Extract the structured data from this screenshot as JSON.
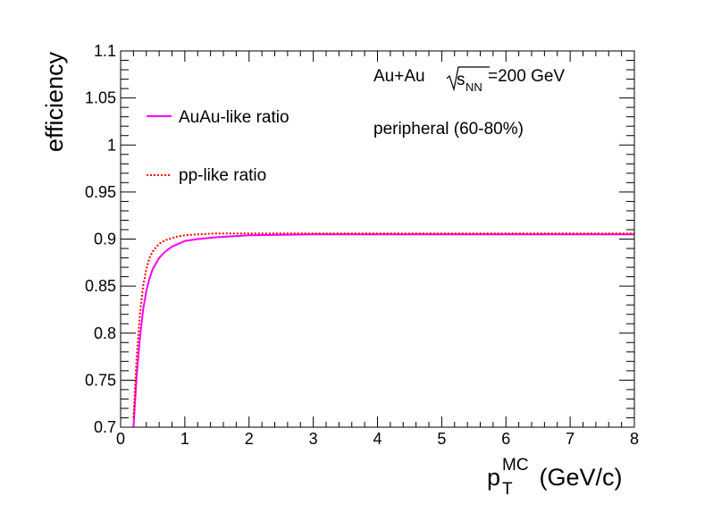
{
  "chart_data": {
    "type": "line",
    "xlabel": {
      "main": "p",
      "sub": "T",
      "sup": "MC",
      "unit": " (GeV/c)"
    },
    "ylabel": "efficiency",
    "xlim": [
      0,
      8
    ],
    "ylim": [
      0.7,
      1.1
    ],
    "x_ticks": [
      0,
      1,
      2,
      3,
      4,
      5,
      6,
      7,
      8
    ],
    "x_tick_labels": [
      "0",
      "1",
      "2",
      "3",
      "4",
      "5",
      "6",
      "7",
      "8"
    ],
    "y_ticks": [
      0.7,
      0.75,
      0.8,
      0.85,
      0.9,
      0.95,
      1.0,
      1.05,
      1.1
    ],
    "y_tick_labels": [
      "0.7",
      "0.75",
      "0.8",
      "0.85",
      "0.9",
      "0.95",
      "1",
      "1.05",
      "1.1"
    ],
    "grid": false,
    "legend_position": "top-left",
    "series": [
      {
        "name": "AuAu-like ratio",
        "color": "#ff00ff",
        "style": "solid",
        "x": [
          0.2,
          0.25,
          0.3,
          0.35,
          0.4,
          0.45,
          0.5,
          0.6,
          0.7,
          0.8,
          0.9,
          1.0,
          1.2,
          1.5,
          2.0,
          3.0,
          4.0,
          5.0,
          6.0,
          7.0,
          8.0
        ],
        "y": [
          0.7,
          0.755,
          0.795,
          0.825,
          0.845,
          0.858,
          0.868,
          0.88,
          0.887,
          0.892,
          0.895,
          0.898,
          0.9,
          0.902,
          0.904,
          0.905,
          0.905,
          0.905,
          0.905,
          0.905,
          0.905
        ]
      },
      {
        "name": "pp-like ratio",
        "color": "#ff0000",
        "style": "dotted",
        "x": [
          0.2,
          0.25,
          0.3,
          0.35,
          0.4,
          0.45,
          0.5,
          0.6,
          0.7,
          0.8,
          0.9,
          1.0,
          1.2,
          1.5,
          2.0,
          3.0,
          4.0,
          5.0,
          6.0,
          7.0,
          8.0
        ],
        "y": [
          0.71,
          0.775,
          0.82,
          0.85,
          0.868,
          0.88,
          0.887,
          0.895,
          0.899,
          0.901,
          0.903,
          0.904,
          0.905,
          0.906,
          0.906,
          0.906,
          0.906,
          0.906,
          0.906,
          0.906,
          0.906
        ]
      }
    ],
    "annotations": {
      "system_prefix": "Au+Au ",
      "sqrt_s": "s",
      "sqrt_sub": "NN",
      "energy": "=200 GeV",
      "centrality": "peripheral (60-80%)"
    }
  }
}
